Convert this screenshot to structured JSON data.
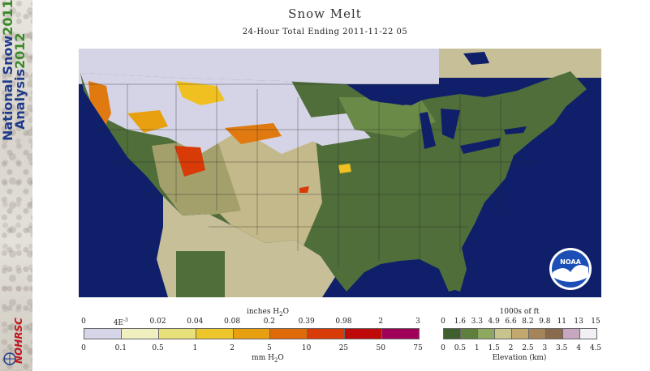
{
  "sidebar": {
    "title_line1": "National Snow",
    "title_year1": "2011-",
    "title_line2": "Analysis",
    "title_year2": "2012",
    "logo_text": "NOHRSC"
  },
  "header": {
    "title": "Snow Melt",
    "subtitle": "24-Hour Total Ending 2011-11-22 05"
  },
  "map": {
    "noaa_logo_text": "NOAA",
    "colors": {
      "ocean": "#0f1f6a",
      "outside_domain": "#c6bf98",
      "snow": "#d4d4e6",
      "lowland_green": "#4f6e3a",
      "plains_tan": "#c4b98a",
      "melt_orange": "#e07a10",
      "melt_yellow": "#f0c020"
    }
  },
  "melt_legend": {
    "unit_top": "inches H",
    "unit_top_sub": "2",
    "unit_top_end": "O",
    "top_ticks": [
      "0",
      "4E",
      "0.02",
      "0.04",
      "0.08",
      "0.2",
      "0.39",
      "0.98",
      "2",
      "3"
    ],
    "top_tick_exp": "-3",
    "bottom_ticks": [
      "0",
      "0.1",
      "0.5",
      "1",
      "2",
      "5",
      "10",
      "25",
      "50",
      "75"
    ],
    "unit_bottom": "mm H",
    "unit_bottom_sub": "2",
    "unit_bottom_end": "O",
    "colors": [
      "#d6d6e8",
      "#efefc0",
      "#e8e07a",
      "#ecc62a",
      "#e8a010",
      "#e06a08",
      "#d83a08",
      "#c00a0a",
      "#a0005a"
    ]
  },
  "elev_legend": {
    "unit_top": "1000s of ft",
    "top_ticks": [
      "0",
      "1.6",
      "3.3",
      "4.9",
      "6.6",
      "8.2",
      "9.8",
      "11",
      "13",
      "15"
    ],
    "bottom_ticks": [
      "0",
      "0.5",
      "1",
      "1.5",
      "2",
      "2.5",
      "3",
      "3.5",
      "4",
      "4.5"
    ],
    "unit_bottom": "Elevation (km)",
    "colors": [
      "#3f5f2c",
      "#5e7f3e",
      "#8fa860",
      "#c9c38e",
      "#c2a86e",
      "#a6845a",
      "#8a6a4e",
      "#c7a6bf",
      "#f2f0f4"
    ]
  }
}
